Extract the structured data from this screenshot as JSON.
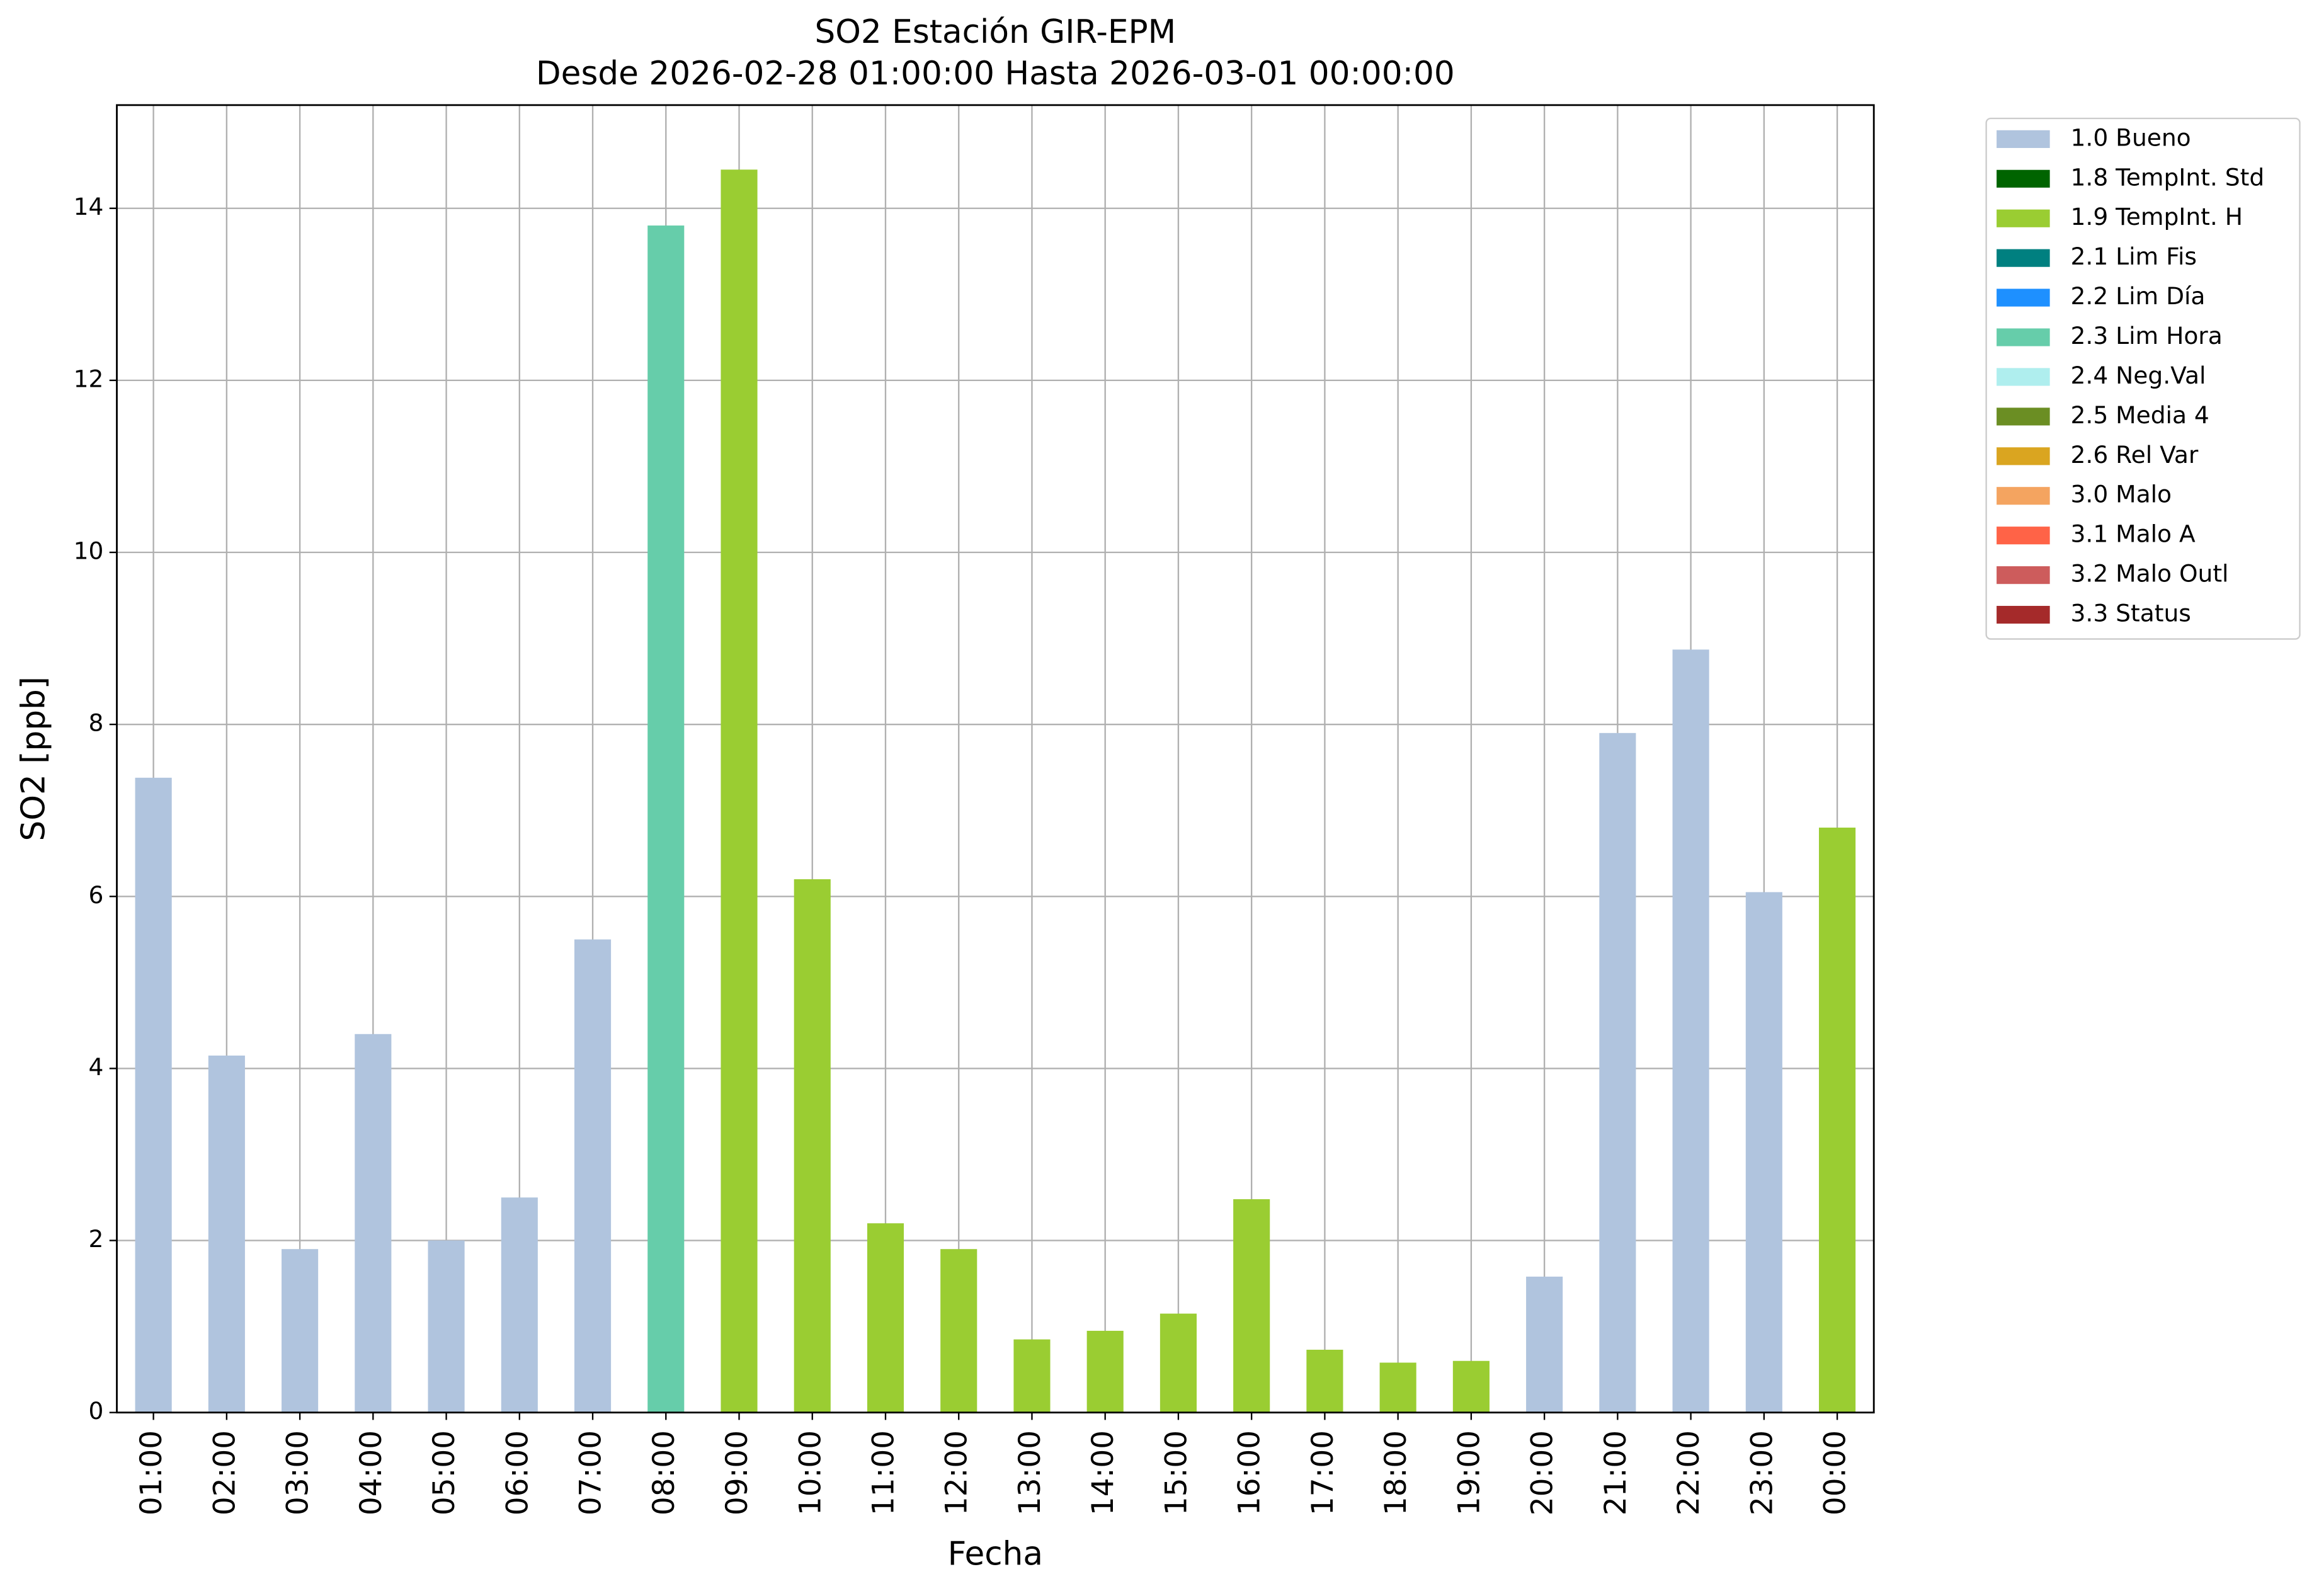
{
  "chart_data": {
    "type": "bar",
    "stacked": true,
    "title": "SO2 Estación GIR-EPM",
    "subtitle": "Desde 2026-02-28 01:00:00 Hasta 2026-03-01 00:00:00",
    "x_label": "Fecha",
    "y_label": "SO2 [ppb]",
    "categories": [
      "01:00",
      "02:00",
      "03:00",
      "04:00",
      "05:00",
      "06:00",
      "07:00",
      "08:00",
      "09:00",
      "10:00",
      "11:00",
      "12:00",
      "13:00",
      "14:00",
      "15:00",
      "16:00",
      "17:00",
      "18:00",
      "19:00",
      "20:00",
      "21:00",
      "22:00",
      "23:00",
      "00:00"
    ],
    "ylim": [
      0,
      15.2
    ],
    "yticks": [
      0,
      2,
      4,
      6,
      8,
      10,
      12,
      14
    ],
    "grid": true,
    "legend_position": "outside-right",
    "series": [
      {
        "name": "1.0 Bueno",
        "color": "#b0c4de",
        "values": [
          7.38,
          4.15,
          1.9,
          4.4,
          2.0,
          2.5,
          5.5,
          null,
          null,
          null,
          null,
          null,
          null,
          null,
          null,
          null,
          null,
          null,
          null,
          1.58,
          7.9,
          8.87,
          6.05,
          null
        ]
      },
      {
        "name": "1.8 TempInt. Std",
        "color": "#006400",
        "values": [
          null,
          null,
          null,
          null,
          null,
          null,
          null,
          null,
          null,
          null,
          null,
          null,
          null,
          null,
          null,
          null,
          null,
          null,
          null,
          null,
          null,
          null,
          null,
          null
        ]
      },
      {
        "name": "1.9 TempInt. H",
        "color": "#9acd32",
        "values": [
          null,
          null,
          null,
          null,
          null,
          null,
          null,
          null,
          14.45,
          6.2,
          2.2,
          1.9,
          0.85,
          0.95,
          1.15,
          2.48,
          0.73,
          0.58,
          0.6,
          null,
          null,
          null,
          null,
          6.8
        ]
      },
      {
        "name": "2.1 Lim Fis",
        "color": "#008080",
        "values": [
          null,
          null,
          null,
          null,
          null,
          null,
          null,
          null,
          null,
          null,
          null,
          null,
          null,
          null,
          null,
          null,
          null,
          null,
          null,
          null,
          null,
          null,
          null,
          null
        ]
      },
      {
        "name": "2.2 Lim Día",
        "color": "#1e90ff",
        "values": [
          null,
          null,
          null,
          null,
          null,
          null,
          null,
          null,
          null,
          null,
          null,
          null,
          null,
          null,
          null,
          null,
          null,
          null,
          null,
          null,
          null,
          null,
          null,
          null
        ]
      },
      {
        "name": "2.3 Lim Hora",
        "color": "#66cdaa",
        "values": [
          null,
          null,
          null,
          null,
          null,
          null,
          null,
          13.8,
          null,
          null,
          null,
          null,
          null,
          null,
          null,
          null,
          null,
          null,
          null,
          null,
          null,
          null,
          null,
          null
        ]
      },
      {
        "name": "2.4 Neg.Val",
        "color": "#afeeee",
        "values": [
          null,
          null,
          null,
          null,
          null,
          null,
          null,
          null,
          null,
          null,
          null,
          null,
          null,
          null,
          null,
          null,
          null,
          null,
          null,
          null,
          null,
          null,
          null,
          null
        ]
      },
      {
        "name": "2.5 Media 4",
        "color": "#6b8e23",
        "values": [
          null,
          null,
          null,
          null,
          null,
          null,
          null,
          null,
          null,
          null,
          null,
          null,
          null,
          null,
          null,
          null,
          null,
          null,
          null,
          null,
          null,
          null,
          null,
          null
        ]
      },
      {
        "name": "2.6 Rel Var",
        "color": "#daa520",
        "values": [
          null,
          null,
          null,
          null,
          null,
          null,
          null,
          null,
          null,
          null,
          null,
          null,
          null,
          null,
          null,
          null,
          null,
          null,
          null,
          null,
          null,
          null,
          null,
          null
        ]
      },
      {
        "name": "3.0 Malo",
        "color": "#f4a460",
        "values": [
          null,
          null,
          null,
          null,
          null,
          null,
          null,
          null,
          null,
          null,
          null,
          null,
          null,
          null,
          null,
          null,
          null,
          null,
          null,
          null,
          null,
          null,
          null,
          null
        ]
      },
      {
        "name": "3.1 Malo A",
        "color": "#ff6347",
        "values": [
          null,
          null,
          null,
          null,
          null,
          null,
          null,
          null,
          null,
          null,
          null,
          null,
          null,
          null,
          null,
          null,
          null,
          null,
          null,
          null,
          null,
          null,
          null,
          null
        ]
      },
      {
        "name": "3.2 Malo Outl",
        "color": "#cd5c5c",
        "values": [
          null,
          null,
          null,
          null,
          null,
          null,
          null,
          null,
          null,
          null,
          null,
          null,
          null,
          null,
          null,
          null,
          null,
          null,
          null,
          null,
          null,
          null,
          null,
          null
        ]
      },
      {
        "name": "3.3 Status",
        "color": "#a52a2a",
        "values": [
          null,
          null,
          null,
          null,
          null,
          null,
          null,
          null,
          null,
          null,
          null,
          null,
          null,
          null,
          null,
          null,
          null,
          null,
          null,
          null,
          null,
          null,
          null,
          null
        ]
      }
    ]
  }
}
